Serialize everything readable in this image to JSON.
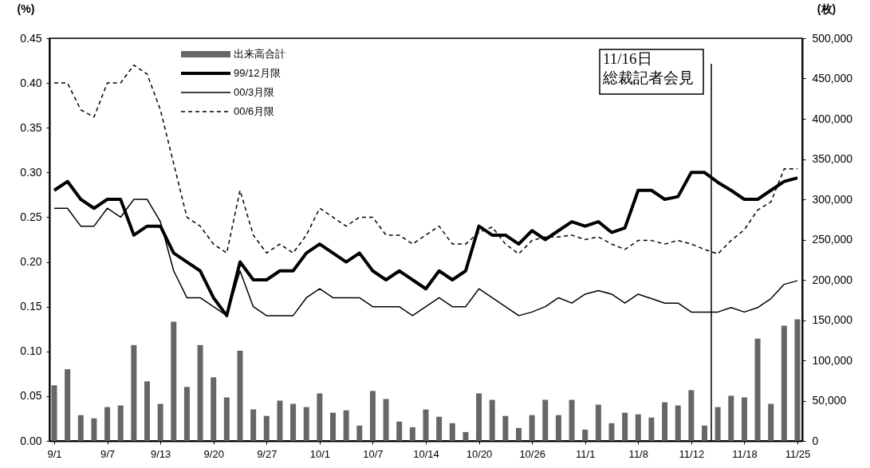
{
  "chart_data": {
    "type": "line",
    "categories": [
      "9/1",
      null,
      null,
      null,
      "9/7",
      null,
      null,
      null,
      "9/13",
      null,
      null,
      null,
      "9/20",
      null,
      null,
      null,
      "9/27",
      null,
      null,
      null,
      "10/1",
      null,
      null,
      null,
      "10/7",
      null,
      null,
      null,
      "10/14",
      null,
      null,
      null,
      "10/20",
      null,
      null,
      null,
      "10/26",
      null,
      null,
      null,
      "11/1",
      null,
      null,
      null,
      "11/8",
      null,
      null,
      null,
      "11/12",
      null,
      null,
      null,
      "11/18",
      null,
      null,
      null,
      "11/25"
    ],
    "ylabel": "(%)",
    "y2label": "(枚)",
    "ylim": [
      0,
      0.45
    ],
    "yticks": [
      {
        "value": 0,
        "label": "0.00"
      },
      {
        "value": 0.05,
        "label": "0.05"
      },
      {
        "value": 0.1,
        "label": "0.10"
      },
      {
        "value": 0.15,
        "label": "0.15"
      },
      {
        "value": 0.2,
        "label": "0.20"
      },
      {
        "value": 0.25,
        "label": "0.25"
      },
      {
        "value": 0.3,
        "label": "0.30"
      },
      {
        "value": 0.35,
        "label": "0.35"
      },
      {
        "value": 0.4,
        "label": "0.40"
      },
      {
        "value": 0.45,
        "label": "0.45"
      }
    ],
    "y2lim": [
      0,
      500000
    ],
    "y2ticks": [
      {
        "value": 0,
        "label": "0"
      },
      {
        "value": 50000,
        "label": "50,000"
      },
      {
        "value": 100000,
        "label": "100,000"
      },
      {
        "value": 150000,
        "label": "150,000"
      },
      {
        "value": 200000,
        "label": "200,000"
      },
      {
        "value": 250000,
        "label": "250,000"
      },
      {
        "value": 300000,
        "label": "300,000"
      },
      {
        "value": 350000,
        "label": "350,000"
      },
      {
        "value": 400000,
        "label": "400,000"
      },
      {
        "value": 450000,
        "label": "450,000"
      },
      {
        "value": 500000,
        "label": "500,000"
      }
    ],
    "series": [
      {
        "name": "出来高合計",
        "type": "bar",
        "axis": "y2",
        "color": "#666666",
        "values": [
          69000,
          89000,
          32000,
          28000,
          42000,
          44000,
          119000,
          74000,
          46000,
          148000,
          67000,
          119000,
          79000,
          54000,
          112000,
          39000,
          31000,
          50000,
          46000,
          42000,
          59000,
          35000,
          38000,
          19000,
          62000,
          52000,
          24000,
          17000,
          39000,
          30000,
          22000,
          11000,
          59000,
          51000,
          31000,
          16000,
          32000,
          51000,
          32000,
          51000,
          14000,
          45000,
          22000,
          35000,
          33000,
          29000,
          48000,
          44000,
          63000,
          19000,
          42000,
          56000,
          54000,
          127000,
          46000,
          143000,
          151000
        ]
      },
      {
        "name": "99/12月限",
        "color": "#000000",
        "line_style": "solid",
        "values": [
          0.28,
          0.29,
          0.27,
          0.26,
          0.27,
          0.27,
          0.23,
          0.24,
          0.24,
          0.21,
          0.2,
          0.19,
          0.16,
          0.14,
          0.2,
          0.18,
          0.18,
          0.19,
          0.19,
          0.21,
          0.22,
          0.21,
          0.2,
          0.21,
          0.19,
          0.18,
          0.19,
          0.18,
          0.17,
          0.19,
          0.18,
          0.19,
          0.24,
          0.23,
          0.23,
          0.22,
          0.235,
          0.225,
          0.235,
          0.245,
          0.24,
          0.245,
          0.233,
          0.238,
          0.28,
          0.28,
          0.27,
          0.273,
          0.3,
          0.3,
          0.289,
          0.28,
          0.27,
          0.27,
          0.28,
          0.29,
          0.294
        ]
      },
      {
        "name": "00/3月限",
        "color": "#000000",
        "line_style": "solid",
        "values": [
          0.26,
          0.26,
          0.24,
          0.24,
          0.26,
          0.25,
          0.27,
          0.27,
          0.245,
          0.19,
          0.16,
          0.16,
          0.15,
          0.14,
          0.19,
          0.15,
          0.14,
          0.14,
          0.14,
          0.16,
          0.17,
          0.16,
          0.16,
          0.16,
          0.15,
          0.15,
          0.15,
          0.14,
          0.15,
          0.16,
          0.15,
          0.15,
          0.17,
          0.16,
          0.15,
          0.14,
          0.144,
          0.15,
          0.16,
          0.154,
          0.164,
          0.168,
          0.164,
          0.154,
          0.164,
          0.159,
          0.154,
          0.154,
          0.144,
          0.144,
          0.144,
          0.149,
          0.144,
          0.149,
          0.159,
          0.175,
          0.179
        ]
      },
      {
        "name": "00/6月限",
        "color": "#000000",
        "line_style": "dashed",
        "values": [
          0.4,
          0.4,
          0.37,
          0.362,
          0.4,
          0.4,
          0.42,
          0.41,
          0.37,
          0.31,
          0.25,
          0.24,
          0.22,
          0.21,
          0.28,
          0.23,
          0.21,
          0.22,
          0.21,
          0.23,
          0.26,
          0.25,
          0.24,
          0.25,
          0.25,
          0.23,
          0.23,
          0.22,
          0.23,
          0.24,
          0.22,
          0.22,
          0.233,
          0.239,
          0.22,
          0.209,
          0.224,
          0.228,
          0.228,
          0.23,
          0.225,
          0.228,
          0.22,
          0.214,
          0.224,
          0.224,
          0.22,
          0.224,
          0.22,
          0.214,
          0.209,
          0.224,
          0.236,
          0.258,
          0.267,
          0.304,
          0.304
        ]
      }
    ],
    "annotations": [
      "11/16日",
      "総裁記者会見"
    ],
    "legend": "top left",
    "grid": false
  }
}
